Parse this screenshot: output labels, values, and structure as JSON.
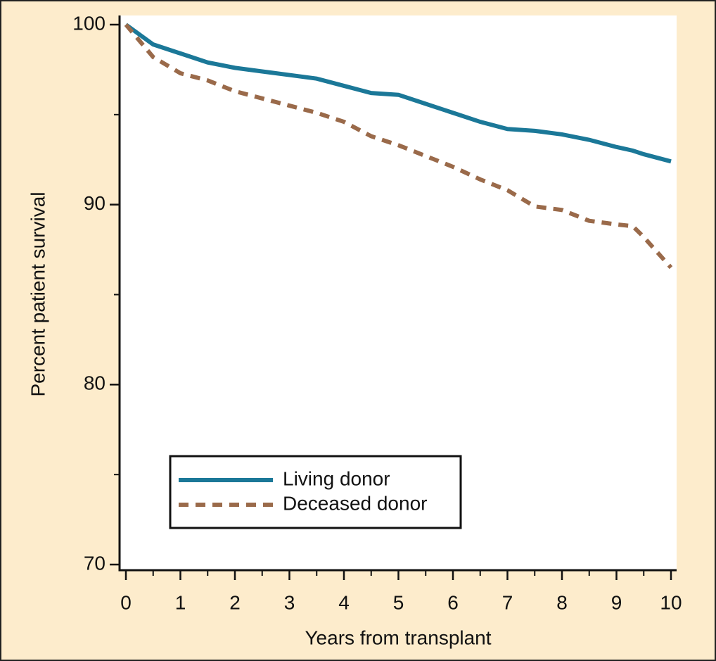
{
  "chart_data": {
    "type": "line",
    "xlabel": "Years from transplant",
    "ylabel": "Percent patient survival",
    "x": [
      0,
      0.5,
      1,
      1.5,
      2,
      2.5,
      3,
      3.5,
      4,
      4.5,
      5,
      5.5,
      6,
      6.5,
      7,
      7.5,
      8,
      8.5,
      9,
      9.3,
      9.5,
      10
    ],
    "series": [
      {
        "name": "Living donor",
        "color": "#1b7898",
        "dash": "solid",
        "values": [
          100,
          98.9,
          98.4,
          97.9,
          97.6,
          97.4,
          97.2,
          97.0,
          96.6,
          96.2,
          96.1,
          95.6,
          95.1,
          94.6,
          94.2,
          94.1,
          93.9,
          93.6,
          93.2,
          93.0,
          92.8,
          92.4
        ]
      },
      {
        "name": "Deceased donor",
        "color": "#9a6a4a",
        "dash": "dashed",
        "values": [
          100,
          98.2,
          97.3,
          96.9,
          96.3,
          95.9,
          95.5,
          95.1,
          94.6,
          93.8,
          93.3,
          92.7,
          92.1,
          91.4,
          90.8,
          89.9,
          89.7,
          89.1,
          88.9,
          88.8,
          88.2,
          86.5
        ]
      }
    ],
    "xlim": [
      0,
      10
    ],
    "ylim": [
      70,
      100
    ],
    "xticks": [
      0,
      1,
      2,
      3,
      4,
      5,
      6,
      7,
      8,
      9,
      10
    ],
    "xminorticks": [
      0.5,
      1.5,
      2.5,
      3.5,
      4.5,
      5.5,
      6.5,
      7.5,
      8.5,
      9.5
    ],
    "yticks": [
      70,
      80,
      90,
      100
    ],
    "yminorticks": [
      75,
      85,
      95
    ],
    "grid": false,
    "legend": "lower left"
  }
}
